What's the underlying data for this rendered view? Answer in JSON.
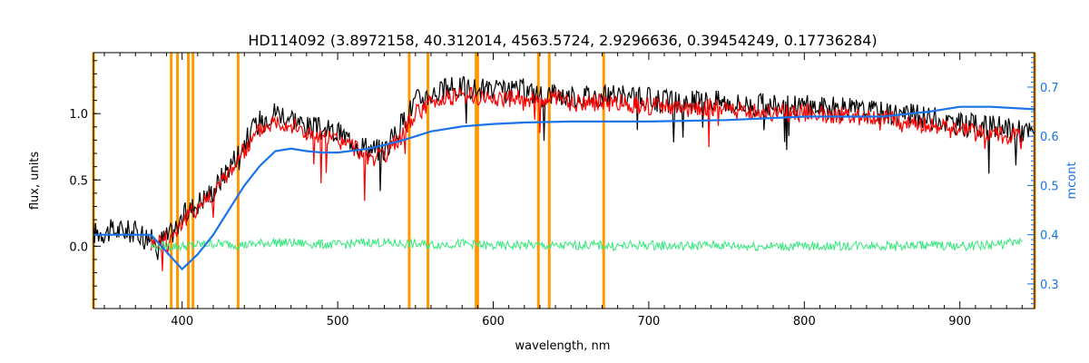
{
  "chart_data": {
    "type": "line",
    "title": "HD114092    (3.8972158, 40.312014, 4563.5724, 2.9296636, 0.39454249, 0.17736284)",
    "xlabel": "wavelength, nm",
    "ylabel": "flux, units",
    "ylabel_right": "mcont",
    "xlim": [
      343,
      948
    ],
    "ylim": [
      -0.47,
      1.46
    ],
    "ylim_right": [
      0.25,
      0.77
    ],
    "x_ticks": [
      400,
      500,
      600,
      700,
      800,
      900
    ],
    "y_ticks": [
      0.0,
      0.5,
      1.0
    ],
    "y_right_ticks": [
      0.3,
      0.4,
      0.5,
      0.6,
      0.7
    ],
    "x_tick_labels": [
      "400",
      "500",
      "600",
      "700",
      "800",
      "900"
    ],
    "y_tick_labels": [
      "0.0",
      "0.5",
      "1.0"
    ],
    "y_right_tick_labels": [
      "0.3",
      "0.4",
      "0.5",
      "0.6",
      "0.7"
    ],
    "grid": false,
    "vertical_lines": [
      343,
      393,
      397,
      404,
      407,
      436,
      546,
      558,
      589,
      590,
      629,
      636,
      671,
      948
    ],
    "series": [
      {
        "role": "observed",
        "color": "#000000",
        "x": [
          343,
          360,
          375,
          383,
          392,
          400,
          410,
          420,
          430,
          440,
          450,
          460,
          470,
          480,
          490,
          500,
          510,
          520,
          530,
          540,
          550,
          560,
          570,
          580,
          590,
          600,
          610,
          620,
          630,
          640,
          650,
          660,
          670,
          680,
          690,
          700,
          720,
          740,
          760,
          780,
          800,
          820,
          840,
          860,
          880,
          900,
          920,
          940,
          948
        ],
        "y": [
          0.1,
          0.12,
          0.1,
          0.02,
          0.08,
          0.22,
          0.33,
          0.42,
          0.6,
          0.78,
          0.95,
          1.02,
          0.98,
          0.9,
          0.88,
          0.85,
          0.8,
          0.74,
          0.72,
          0.9,
          1.1,
          1.15,
          1.18,
          1.2,
          1.18,
          1.17,
          1.16,
          1.18,
          1.14,
          1.16,
          1.12,
          1.14,
          1.13,
          1.13,
          1.12,
          1.11,
          1.08,
          1.1,
          1.07,
          1.06,
          1.06,
          1.04,
          1.02,
          1.0,
          0.97,
          0.92,
          0.9,
          0.87,
          0.85
        ]
      },
      {
        "role": "model",
        "color": "#ff0000",
        "x": [
          380,
          392,
          400,
          410,
          420,
          430,
          440,
          450,
          460,
          470,
          480,
          490,
          500,
          510,
          520,
          530,
          540,
          550,
          560,
          570,
          580,
          590,
          600,
          610,
          620,
          630,
          640,
          650,
          660,
          670,
          680,
          690,
          700,
          720,
          740,
          760,
          780,
          800,
          820,
          840,
          860,
          880,
          900,
          920,
          940
        ],
        "y": [
          0.02,
          0.06,
          0.18,
          0.3,
          0.4,
          0.56,
          0.72,
          0.88,
          0.95,
          0.92,
          0.85,
          0.82,
          0.8,
          0.75,
          0.68,
          0.66,
          0.82,
          1.0,
          1.08,
          1.12,
          1.14,
          1.12,
          1.12,
          1.11,
          1.12,
          1.1,
          1.11,
          1.08,
          1.09,
          1.08,
          1.08,
          1.07,
          1.06,
          1.03,
          1.05,
          1.02,
          1.01,
          1.01,
          0.99,
          0.97,
          0.95,
          0.92,
          0.87,
          0.85,
          0.82
        ]
      },
      {
        "role": "residual",
        "color": "#33e87a",
        "x": [
          380,
          400,
          420,
          440,
          460,
          480,
          500,
          520,
          540,
          560,
          580,
          600,
          620,
          640,
          660,
          680,
          700,
          720,
          740,
          760,
          780,
          800,
          820,
          840,
          860,
          880,
          900,
          920,
          940
        ],
        "y": [
          0.0,
          0.0,
          0.02,
          0.01,
          0.03,
          0.02,
          0.01,
          0.03,
          0.02,
          0.01,
          0.02,
          0.0,
          0.01,
          0.0,
          0.01,
          0.0,
          0.01,
          0.0,
          0.01,
          0.0,
          0.0,
          0.0,
          0.0,
          0.01,
          0.0,
          0.01,
          0.0,
          0.01,
          0.03
        ]
      },
      {
        "role": "mcont",
        "axis": "right",
        "color": "#1a73e8",
        "x": [
          343,
          380,
          400,
          410,
          420,
          430,
          440,
          450,
          460,
          470,
          480,
          490,
          500,
          520,
          540,
          560,
          580,
          600,
          620,
          650,
          700,
          750,
          800,
          850,
          880,
          900,
          920,
          948
        ],
        "y": [
          0.4,
          0.4,
          0.33,
          0.36,
          0.4,
          0.45,
          0.5,
          0.54,
          0.57,
          0.575,
          0.57,
          0.567,
          0.567,
          0.575,
          0.59,
          0.61,
          0.62,
          0.625,
          0.628,
          0.63,
          0.63,
          0.633,
          0.64,
          0.64,
          0.65,
          0.66,
          0.66,
          0.655
        ]
      }
    ]
  }
}
